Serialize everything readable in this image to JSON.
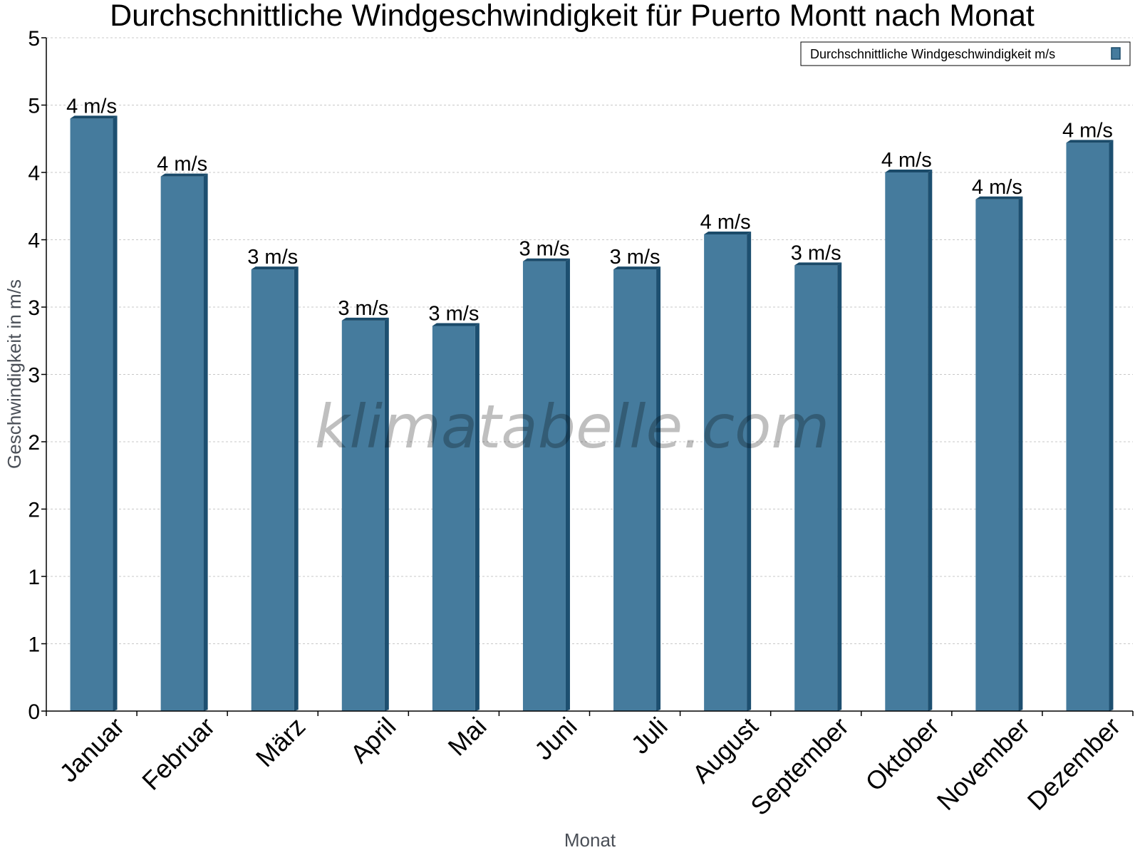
{
  "colors": {
    "bar_face": "#457b9d",
    "bar_side": "#1d4f70",
    "bar_top": "#1a4a69",
    "grid": "#c8c8c8",
    "axis": "#000000"
  },
  "watermark": "klimatabelle.com",
  "chart_data": {
    "type": "bar",
    "title": "Durchschnittliche Windgeschwindigkeit für Puerto Montt nach Monat",
    "xlabel": "Monat",
    "ylabel": "Geschwindigkeit in m/s",
    "categories": [
      "Januar",
      "Februar",
      "März",
      "April",
      "Mai",
      "Juni",
      "Juli",
      "August",
      "September",
      "Oktober",
      "November",
      "Dezember"
    ],
    "series": [
      {
        "name": "Durchschnittliche Windgeschwindigkeit m/s",
        "values": [
          4.4,
          3.97,
          3.28,
          2.9,
          2.86,
          3.34,
          3.28,
          3.54,
          3.31,
          4.0,
          3.8,
          4.22
        ],
        "labels": [
          "4 m/s",
          "4 m/s",
          "3 m/s",
          "3 m/s",
          "3 m/s",
          "3 m/s",
          "3 m/s",
          "4 m/s",
          "3 m/s",
          "4 m/s",
          "4 m/s",
          "4 m/s"
        ]
      }
    ],
    "ylim": [
      0,
      5
    ],
    "yticks": [
      0,
      0.5,
      1,
      1.5,
      2,
      2.5,
      3,
      3.5,
      4,
      4.5,
      5
    ],
    "ytick_labels": [
      "0",
      "1",
      "1",
      "2",
      "2",
      "3",
      "3",
      "4",
      "4",
      "5",
      "5"
    ],
    "grid": true,
    "legend_position": "top-right"
  }
}
